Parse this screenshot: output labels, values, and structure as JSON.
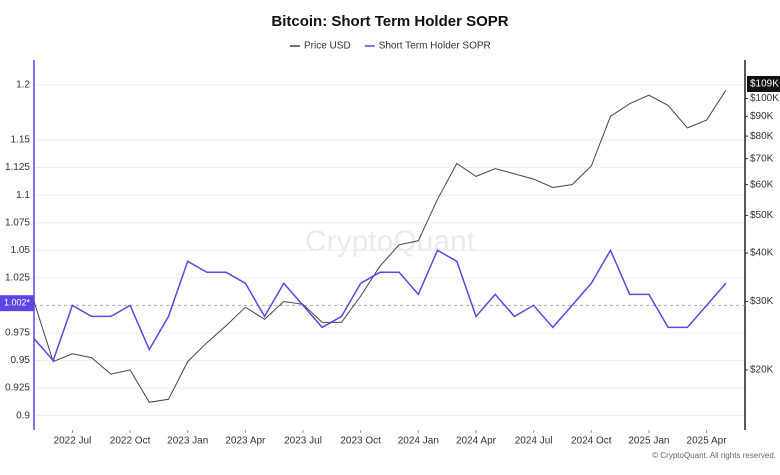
{
  "chart_data": {
    "type": "line",
    "title": "Bitcoin: Short Term Holder SOPR",
    "watermark": "CryptoQuant",
    "footer": "© CryptoQuant. All rights reserved.",
    "x": [
      "2022-05",
      "2022-06",
      "2022-07",
      "2022-08",
      "2022-09",
      "2022-10",
      "2022-11",
      "2022-12",
      "2023-01",
      "2023-02",
      "2023-03",
      "2023-04",
      "2023-05",
      "2023-06",
      "2023-07",
      "2023-08",
      "2023-09",
      "2023-10",
      "2023-11",
      "2023-12",
      "2024-01",
      "2024-02",
      "2024-03",
      "2024-04",
      "2024-05",
      "2024-06",
      "2024-07",
      "2024-08",
      "2024-09",
      "2024-10",
      "2024-11",
      "2024-12",
      "2025-01",
      "2025-02",
      "2025-03",
      "2025-04",
      "2025-05"
    ],
    "xlim": [
      "2022-05",
      "2025-06"
    ],
    "xticks": [
      {
        "value": "2022-07",
        "label": "2022 Jul"
      },
      {
        "value": "2022-10",
        "label": "2022 Oct"
      },
      {
        "value": "2023-01",
        "label": "2023 Jan"
      },
      {
        "value": "2023-04",
        "label": "2023 Apr"
      },
      {
        "value": "2023-07",
        "label": "2023 Jul"
      },
      {
        "value": "2023-10",
        "label": "2023 Oct"
      },
      {
        "value": "2024-01",
        "label": "2024 Jan"
      },
      {
        "value": "2024-04",
        "label": "2024 Apr"
      },
      {
        "value": "2024-07",
        "label": "2024 Jul"
      },
      {
        "value": "2024-10",
        "label": "2024 Oct"
      },
      {
        "value": "2025-01",
        "label": "2025 Jan"
      },
      {
        "value": "2025-04",
        "label": "2025 Apr"
      }
    ],
    "ylim": [
      0.887,
      1.218
    ],
    "yticks": [
      1.2,
      1.15,
      1.125,
      1.1,
      1.075,
      1.05,
      1.025,
      0.975,
      0.95,
      0.925,
      0.9
    ],
    "y2lim": [
      14000,
      122000
    ],
    "y2_log": true,
    "y2ticks": [
      {
        "value": 20000,
        "label": "$20K"
      },
      {
        "value": 30000,
        "label": "$30K"
      },
      {
        "value": 40000,
        "label": "$40K"
      },
      {
        "value": 50000,
        "label": "$50K"
      },
      {
        "value": 60000,
        "label": "$60K"
      },
      {
        "value": 70000,
        "label": "$70K"
      },
      {
        "value": 80000,
        "label": "$80K"
      },
      {
        "value": 90000,
        "label": "$90K"
      },
      {
        "value": 100000,
        "label": "$100K"
      }
    ],
    "grid": true,
    "reference_line": 1,
    "y_marker": {
      "value": 1.002,
      "label": "1.002*"
    },
    "y2_marker": {
      "value": 109000,
      "label": "$109K"
    },
    "series": [
      {
        "name": "Price USD",
        "color": "#444444",
        "axis": "y2",
        "values": [
          30000,
          21000,
          22000,
          21500,
          19500,
          20000,
          16500,
          16800,
          21000,
          23500,
          26000,
          29000,
          27000,
          30000,
          29500,
          26500,
          26500,
          31000,
          37000,
          42000,
          43000,
          55000,
          68000,
          63000,
          66000,
          64000,
          62000,
          59000,
          60000,
          67000,
          90000,
          97000,
          102000,
          96000,
          84000,
          88000,
          105000
        ]
      },
      {
        "name": "Short Term Holder SOPR",
        "color": "#5a47e6",
        "axis": "y",
        "values": [
          0.97,
          0.95,
          1.0,
          0.99,
          0.99,
          1.0,
          0.96,
          0.99,
          1.04,
          1.03,
          1.03,
          1.02,
          0.99,
          1.02,
          1.0,
          0.98,
          0.99,
          1.02,
          1.03,
          1.03,
          1.01,
          1.05,
          1.04,
          0.99,
          1.01,
          0.99,
          1.0,
          0.98,
          1.0,
          1.02,
          1.05,
          1.01,
          1.01,
          0.98,
          0.98,
          1.0,
          1.02
        ]
      }
    ]
  }
}
